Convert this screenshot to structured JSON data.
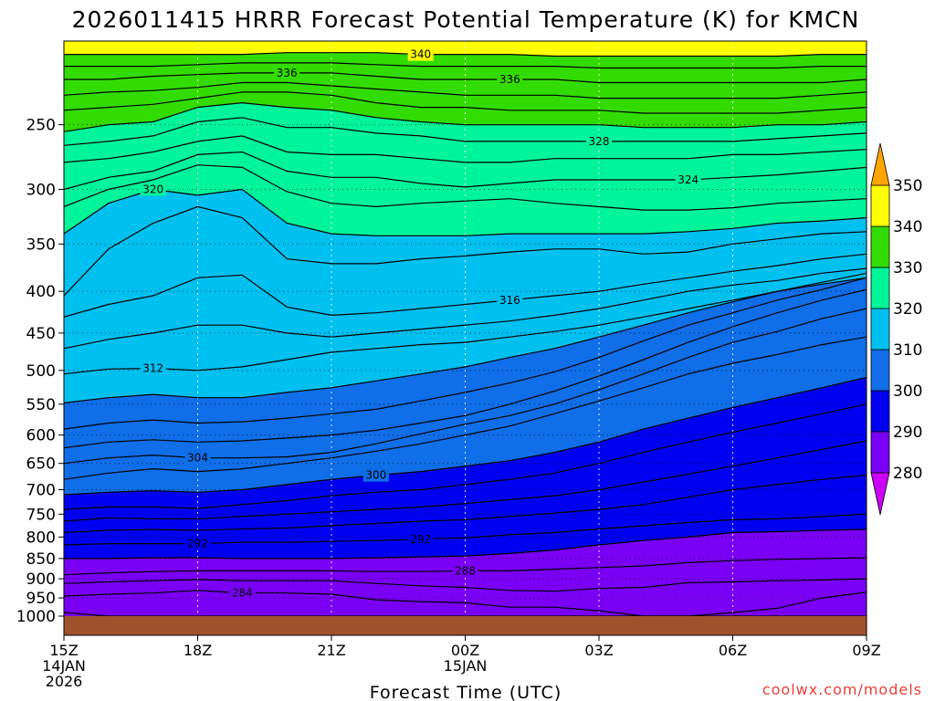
{
  "chart_data": {
    "type": "heatmap",
    "title": "2026011415 HRRR Forecast Potential Temperature (K) for KMCN",
    "xlabel": "Forecast Time (UTC)",
    "ylabel": "",
    "credit": "coolwx.com/models",
    "x_ticks": [
      {
        "hour": 0,
        "lines": [
          "15Z",
          "14JAN",
          "2026"
        ]
      },
      {
        "hour": 3,
        "lines": [
          "18Z"
        ]
      },
      {
        "hour": 6,
        "lines": [
          "21Z"
        ]
      },
      {
        "hour": 9,
        "lines": [
          "00Z",
          "15JAN"
        ]
      },
      {
        "hour": 12,
        "lines": [
          "03Z"
        ]
      },
      {
        "hour": 15,
        "lines": [
          "06Z"
        ]
      },
      {
        "hour": 18,
        "lines": [
          "09Z"
        ]
      }
    ],
    "x_range": [
      0,
      18
    ],
    "y_scale": "log-pressure",
    "y_range_hpa": [
      1000,
      200
    ],
    "y_ticks": [
      250,
      300,
      350,
      400,
      450,
      500,
      550,
      600,
      650,
      700,
      750,
      800,
      850,
      900,
      950,
      1000
    ],
    "colorbar": {
      "levels": [
        280,
        290,
        300,
        310,
        320,
        330,
        340,
        350
      ],
      "labels": [
        "280",
        "290",
        "300",
        "310",
        "320",
        "330",
        "340",
        "350"
      ],
      "colors": [
        "#cc00f5",
        "#7a00f5",
        "#0000f0",
        "#0f6ee8",
        "#00c0f0",
        "#00f59a",
        "#33dc00",
        "#ffff00",
        "#ffa500"
      ],
      "extend": "both"
    },
    "ground_color": "#a0522d",
    "contour_interval_k": 2,
    "columns_hour": [
      0,
      1,
      2,
      3,
      4,
      5,
      6,
      7,
      8,
      9,
      10,
      11,
      12,
      13,
      14,
      15,
      16,
      17,
      18
    ],
    "isentropes": [
      {
        "theta": 282,
        "p": [
          990,
          1000,
          1000,
          1000,
          1000,
          1000,
          1000,
          1000,
          1000,
          1000,
          1000,
          1000,
          1000,
          1000,
          1000,
          1000,
          1000,
          1000,
          1000
        ]
      },
      {
        "theta": 284,
        "p": [
          945,
          940,
          937,
          930,
          937,
          937,
          940,
          955,
          960,
          963,
          975,
          975,
          985,
          1000,
          1000,
          990,
          978,
          950,
          935
        ]
      },
      {
        "theta": 286,
        "p": [
          912,
          908,
          905,
          902,
          905,
          905,
          905,
          912,
          918,
          922,
          930,
          932,
          925,
          922,
          910,
          908,
          905,
          903,
          900
        ]
      },
      {
        "theta": 288,
        "p": [
          890,
          885,
          882,
          880,
          880,
          880,
          880,
          882,
          882,
          880,
          880,
          876,
          872,
          868,
          860,
          855,
          852,
          850,
          848
        ]
      },
      {
        "theta": 290,
        "p": [
          850,
          850,
          848,
          848,
          850,
          850,
          850,
          848,
          846,
          844,
          838,
          830,
          818,
          808,
          800,
          790,
          788,
          785,
          783
        ]
      },
      {
        "theta": 292,
        "p": [
          818,
          815,
          815,
          815,
          812,
          812,
          810,
          808,
          805,
          802,
          795,
          790,
          782,
          775,
          768,
          762,
          760,
          755,
          750
        ]
      },
      {
        "theta": 294,
        "p": [
          790,
          785,
          783,
          785,
          782,
          780,
          775,
          770,
          765,
          762,
          755,
          748,
          740,
          730,
          715,
          700,
          690,
          680,
          672
        ]
      },
      {
        "theta": 296,
        "p": [
          765,
          758,
          760,
          760,
          755,
          750,
          745,
          740,
          735,
          728,
          720,
          712,
          700,
          685,
          670,
          655,
          640,
          625,
          610
        ]
      },
      {
        "theta": 298,
        "p": [
          740,
          735,
          735,
          738,
          730,
          722,
          712,
          705,
          700,
          690,
          680,
          668,
          650,
          630,
          612,
          595,
          580,
          565,
          550
        ]
      },
      {
        "theta": 300,
        "p": [
          710,
          705,
          702,
          705,
          700,
          690,
          680,
          672,
          665,
          655,
          645,
          630,
          612,
          590,
          572,
          555,
          540,
          525,
          510
        ]
      },
      {
        "theta": 302,
        "p": [
          680,
          668,
          660,
          665,
          660,
          650,
          640,
          628,
          615,
          600,
          585,
          565,
          545,
          525,
          505,
          490,
          478,
          465,
          455
        ]
      },
      {
        "theta": 304,
        "p": [
          650,
          640,
          635,
          640,
          640,
          638,
          630,
          615,
          598,
          582,
          568,
          550,
          528,
          505,
          482,
          462,
          448,
          432,
          420
        ]
      },
      {
        "theta": 306,
        "p": [
          622,
          612,
          608,
          612,
          610,
          605,
          600,
          592,
          580,
          568,
          550,
          530,
          508,
          485,
          462,
          442,
          425,
          410,
          398
        ]
      },
      {
        "theta": 308,
        "p": [
          590,
          580,
          575,
          580,
          578,
          572,
          565,
          558,
          545,
          532,
          518,
          502,
          482,
          460,
          440,
          425,
          410,
          398,
          385
        ]
      },
      {
        "theta": 310,
        "p": [
          548,
          540,
          535,
          540,
          540,
          532,
          525,
          515,
          505,
          495,
          482,
          470,
          455,
          440,
          425,
          412,
          400,
          390,
          380
        ]
      },
      {
        "theta": 312,
        "p": [
          505,
          498,
          497,
          500,
          495,
          485,
          475,
          470,
          465,
          462,
          455,
          448,
          440,
          430,
          420,
          410,
          400,
          392,
          385
        ]
      },
      {
        "theta": 314,
        "p": [
          470,
          458,
          450,
          440,
          440,
          450,
          455,
          450,
          445,
          440,
          435,
          428,
          420,
          410,
          400,
          393,
          388,
          380,
          375
        ]
      },
      {
        "theta": 316,
        "p": [
          430,
          415,
          405,
          385,
          382,
          418,
          428,
          425,
          420,
          415,
          410,
          405,
          400,
          392,
          385,
          378,
          372,
          365,
          360
        ]
      },
      {
        "theta": 318,
        "p": [
          405,
          355,
          330,
          315,
          325,
          365,
          370,
          370,
          365,
          362,
          358,
          355,
          355,
          360,
          358,
          350,
          345,
          340,
          338
        ]
      },
      {
        "theta": 320,
        "p": [
          340,
          312,
          300,
          305,
          300,
          330,
          340,
          342,
          342,
          342,
          340,
          340,
          340,
          340,
          338,
          335,
          330,
          328,
          325
        ]
      },
      {
        "theta": 322,
        "p": [
          315,
          300,
          292,
          280,
          282,
          302,
          312,
          315,
          312,
          310,
          308,
          312,
          315,
          318,
          318,
          316,
          312,
          310,
          308
        ]
      },
      {
        "theta": 324,
        "p": [
          300,
          290,
          285,
          272,
          270,
          285,
          290,
          290,
          295,
          298,
          295,
          292,
          292,
          292,
          292,
          290,
          288,
          285,
          282
        ]
      },
      {
        "theta": 326,
        "p": [
          278,
          275,
          270,
          262,
          258,
          270,
          272,
          272,
          275,
          278,
          278,
          275,
          275,
          275,
          275,
          272,
          272,
          270,
          268
        ]
      },
      {
        "theta": 328,
        "p": [
          265,
          262,
          258,
          248,
          245,
          252,
          252,
          256,
          258,
          262,
          262,
          262,
          262,
          262,
          262,
          262,
          260,
          258,
          256
        ]
      },
      {
        "theta": 330,
        "p": [
          255,
          250,
          248,
          238,
          235,
          238,
          240,
          245,
          248,
          250,
          250,
          250,
          250,
          252,
          252,
          252,
          250,
          250,
          248
        ]
      },
      {
        "theta": 332,
        "p": [
          240,
          238,
          236,
          232,
          228,
          228,
          230,
          235,
          238,
          238,
          240,
          240,
          240,
          242,
          242,
          242,
          242,
          240,
          238
        ]
      },
      {
        "theta": 334,
        "p": [
          230,
          228,
          227,
          225,
          222,
          222,
          224,
          226,
          228,
          230,
          230,
          230,
          232,
          232,
          232,
          232,
          232,
          230,
          228
        ]
      },
      {
        "theta": 336,
        "p": [
          220,
          220,
          218,
          217,
          216,
          216,
          216,
          218,
          220,
          220,
          220,
          220,
          222,
          222,
          222,
          222,
          222,
          222,
          220
        ]
      },
      {
        "theta": 338,
        "p": [
          212,
          212,
          212,
          211,
          210,
          210,
          210,
          211,
          212,
          212,
          212,
          212,
          213,
          213,
          213,
          213,
          213,
          212,
          212
        ]
      },
      {
        "theta": 340,
        "p": [
          205,
          205,
          205,
          205,
          205,
          204,
          204,
          204,
          205,
          205,
          205,
          206,
          206,
          206,
          206,
          206,
          206,
          205,
          205
        ]
      }
    ],
    "contour_labels": [
      {
        "theta": 340,
        "hour": 8
      },
      {
        "theta": 336,
        "hour": 5
      },
      {
        "theta": 336,
        "hour": 10
      },
      {
        "theta": 328,
        "hour": 12
      },
      {
        "theta": 324,
        "hour": 14
      },
      {
        "theta": 320,
        "hour": 2
      },
      {
        "theta": 316,
        "hour": 10
      },
      {
        "theta": 312,
        "hour": 2
      },
      {
        "theta": 304,
        "hour": 3
      },
      {
        "theta": 300,
        "hour": 7
      },
      {
        "theta": 292,
        "hour": 3
      },
      {
        "theta": 292,
        "hour": 8
      },
      {
        "theta": 288,
        "hour": 9
      },
      {
        "theta": 284,
        "hour": 4
      }
    ]
  }
}
